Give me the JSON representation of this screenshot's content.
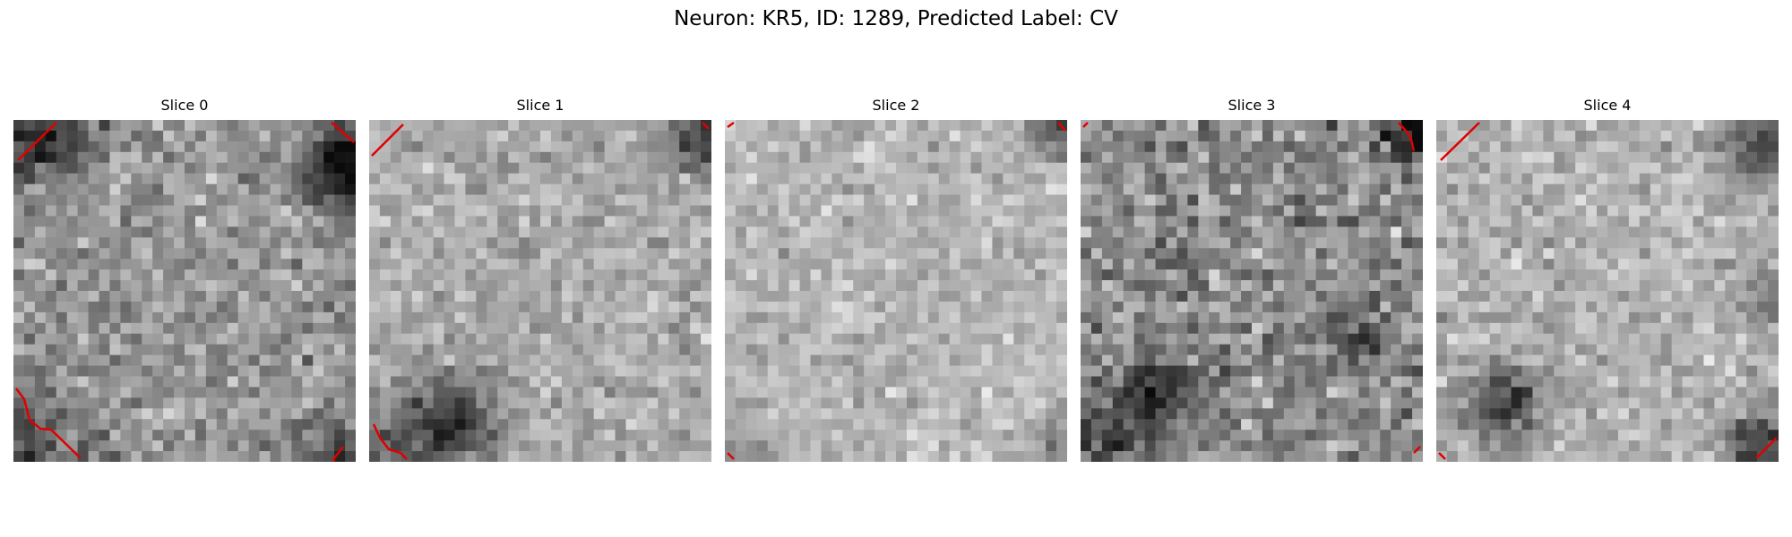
{
  "figure": {
    "title": "Neuron: KR5, ID: 1289, Predicted Label: CV"
  },
  "panels": [
    {
      "title": "Slice 0"
    },
    {
      "title": "Slice 1"
    },
    {
      "title": "Slice 2"
    },
    {
      "title": "Slice 3"
    },
    {
      "title": "Slice 4"
    }
  ],
  "colors": {
    "contour": "#e00000",
    "background": "#ffffff"
  },
  "image_grid": {
    "rows": 32,
    "cols": 32,
    "colormap": "grayscale"
  }
}
